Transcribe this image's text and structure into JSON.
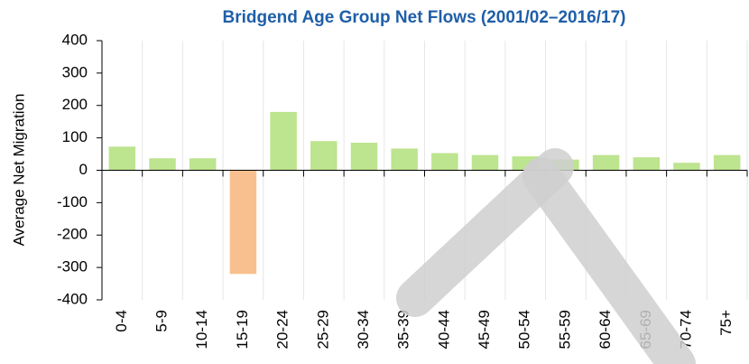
{
  "chart_data": {
    "type": "bar",
    "title": "Bridgend Age Group Net Flows (2001/02–2016/17)",
    "y_label": "Average Net Migration",
    "categories": [
      "0-4",
      "5-9",
      "10-14",
      "15-19",
      "20-24",
      "25-29",
      "30-34",
      "35-39",
      "40-44",
      "45-49",
      "50-54",
      "55-59",
      "60-64",
      "65-69",
      "70-74",
      "75+"
    ],
    "values": [
      73,
      37,
      37,
      -320,
      180,
      90,
      85,
      67,
      53,
      47,
      43,
      33,
      47,
      40,
      23,
      47
    ],
    "color": "#bde48f",
    "negative_color": "#f8c08e",
    "ylim": [
      -400,
      400
    ],
    "yticks": [
      -400,
      -300,
      -200,
      -100,
      0,
      100,
      200,
      300,
      400
    ]
  }
}
